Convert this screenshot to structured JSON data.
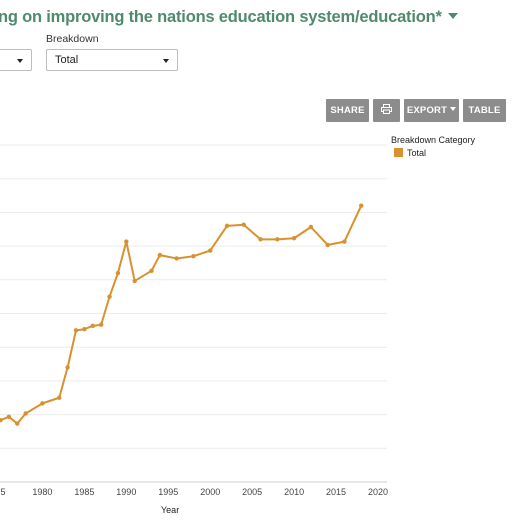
{
  "header": {
    "title": "ng on improving the nations education system/education*",
    "title_color": "#4f8a6e"
  },
  "filters": {
    "breakdown_label": "Breakdown",
    "first_select_value": "",
    "breakdown_value": "Total"
  },
  "toolbar": {
    "share_label": "SHARE",
    "print_icon": "print-icon",
    "export_label": "EXPORT",
    "table_label": "TABLE",
    "button_color": "#8c8c8c"
  },
  "legend": {
    "title": "Breakdown Category",
    "items": [
      {
        "label": "Total",
        "color": "#d9912f"
      }
    ]
  },
  "chart_data": {
    "type": "line",
    "xlabel": "Year",
    "ylabel": "",
    "x_tick_labels": [
      "5",
      "1980",
      "1985",
      "1990",
      "1995",
      "2000",
      "2005",
      "2010",
      "2015",
      "2020"
    ],
    "grid": true,
    "legend_position": "right",
    "series": [
      {
        "name": "Total",
        "color": "#d9912f",
        "x": [
          1975,
          1976,
          1977,
          1978,
          1980,
          1982,
          1983,
          1984,
          1985,
          1986,
          1987,
          1988,
          1989,
          1990,
          1991,
          1993,
          1994,
          1996,
          1998,
          2000,
          2002,
          2004,
          2006,
          2008,
          2010,
          2012,
          2014,
          2016,
          2018
        ],
        "y": [
          5.5,
          5.8,
          5.2,
          6.1,
          7.0,
          7.5,
          10.2,
          13.5,
          13.6,
          13.9,
          14.0,
          16.5,
          18.6,
          21.4,
          17.9,
          18.8,
          20.2,
          19.9,
          20.1,
          20.6,
          22.8,
          22.9,
          21.6,
          21.6,
          21.7,
          22.7,
          21.1,
          21.4,
          24.6
        ]
      }
    ]
  }
}
